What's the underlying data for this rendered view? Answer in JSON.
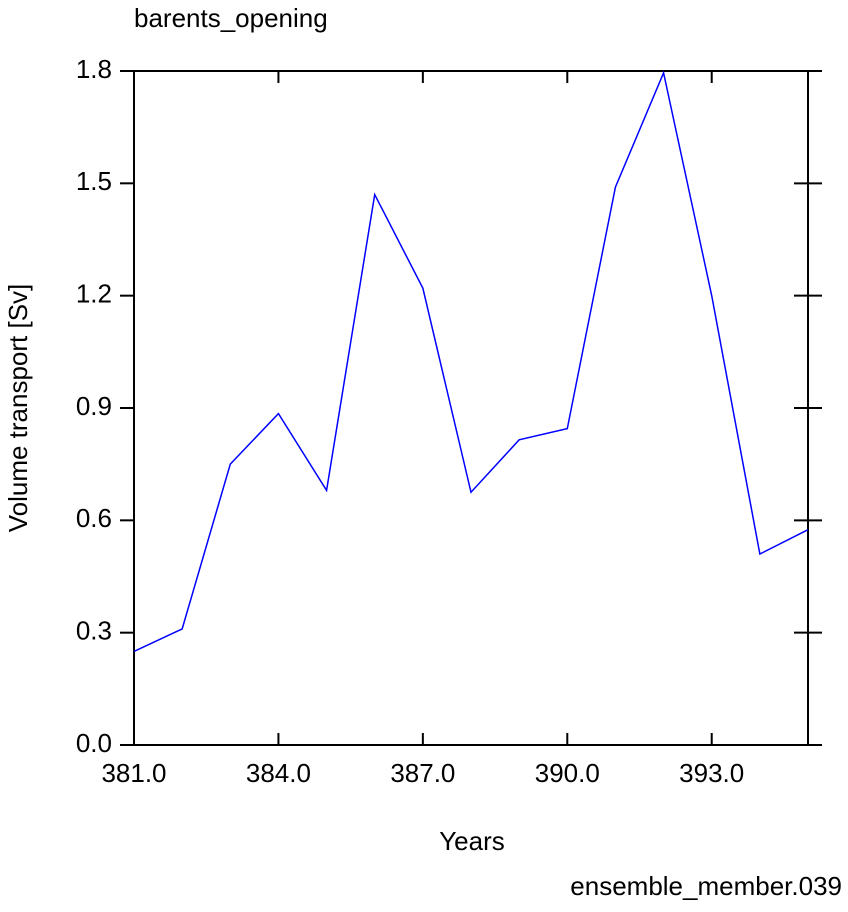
{
  "chart_data": {
    "type": "line",
    "title": "barents_opening",
    "x_label": "Years",
    "y_label": "Volume transport [Sv]",
    "annotation": "ensemble_member.039",
    "annotation_color": "#0000ff",
    "x": [
      381,
      382,
      383,
      384,
      385,
      386,
      387,
      388,
      389,
      390,
      391,
      392,
      393,
      394,
      395
    ],
    "series": [
      {
        "name": "barents_opening",
        "color": "#0000ff",
        "values": [
          0.25,
          0.31,
          0.75,
          0.885,
          0.68,
          1.47,
          1.22,
          0.675,
          0.815,
          0.845,
          1.49,
          1.795,
          1.2,
          0.51,
          0.575
        ]
      }
    ],
    "xlim": [
      381,
      395
    ],
    "xticks": [
      {
        "value": 381,
        "label": "381.0"
      },
      {
        "value": 384,
        "label": "384.0"
      },
      {
        "value": 387,
        "label": "387.0"
      },
      {
        "value": 390,
        "label": "390.0"
      },
      {
        "value": 393,
        "label": "393.0"
      }
    ],
    "ylim": [
      0,
      1.8
    ],
    "yticks": [
      {
        "value": 0,
        "label": "0.0"
      },
      0.3,
      0.6,
      0.9,
      1.2,
      1.5,
      1.8
    ],
    "grid": false
  }
}
